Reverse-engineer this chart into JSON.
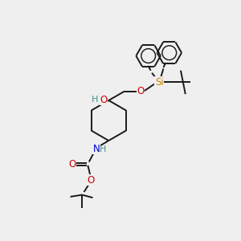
{
  "background_color": "#efefef",
  "figure_size": [
    3.0,
    3.0
  ],
  "dpi": 100,
  "bond_color": "#1a1a1a",
  "o_color": "#cc0000",
  "n_color": "#0000cc",
  "si_color": "#cc8800",
  "h_color": "#4a8a8a",
  "line_width": 1.4,
  "xlim": [
    0,
    10
  ],
  "ylim": [
    0,
    10
  ]
}
